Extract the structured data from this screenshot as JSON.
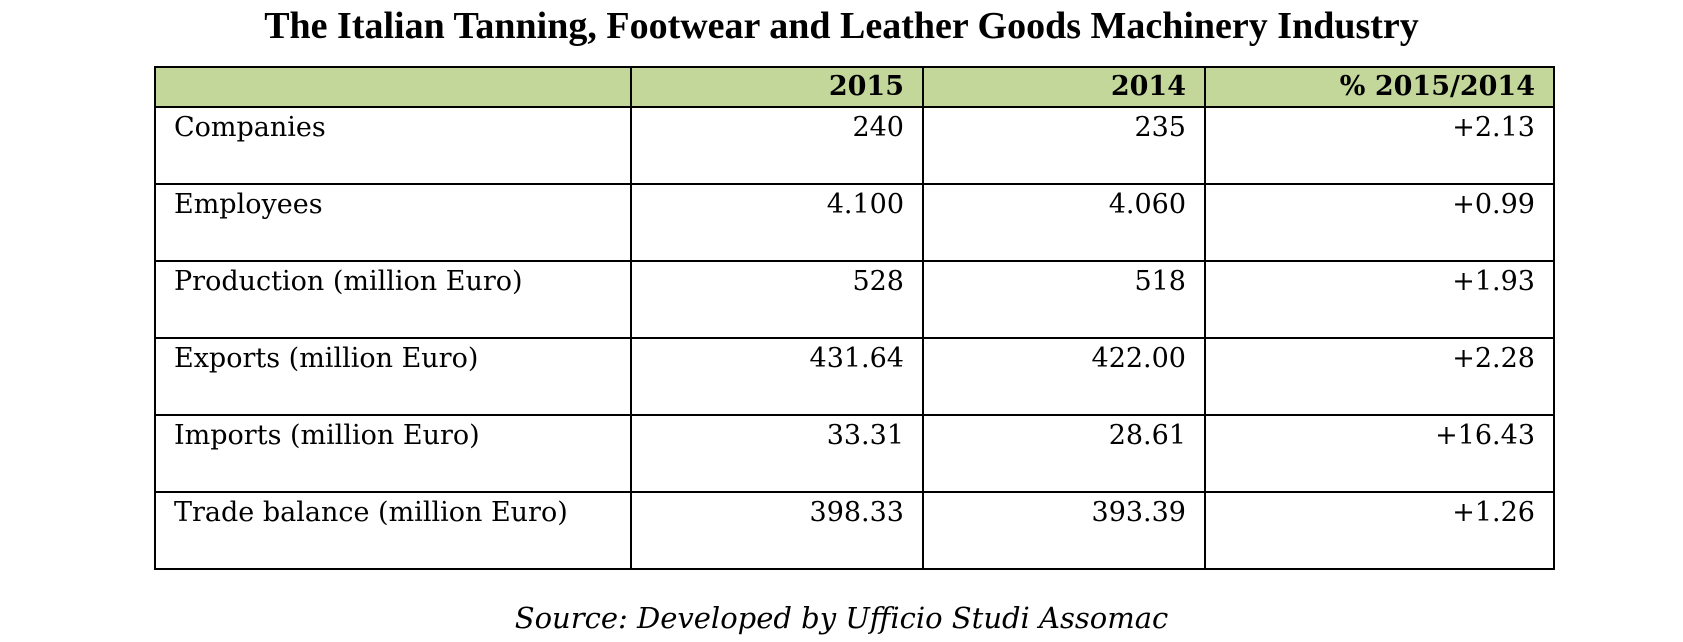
{
  "title": "The Italian Tanning, Footwear and Leather Goods Machinery Industry",
  "table": {
    "header_color": "#c4d79b",
    "columns": [
      "",
      "2015",
      "2014",
      "% 2015/2014"
    ],
    "rows": [
      {
        "label": "Companies",
        "y2015": "240",
        "y2014": "235",
        "change": "+2.13"
      },
      {
        "label": "Employees",
        "y2015": "4.100",
        "y2014": "4.060",
        "change": "+0.99"
      },
      {
        "label": "Production (million Euro)",
        "y2015": "528",
        "y2014": "518",
        "change": "+1.93"
      },
      {
        "label": "Exports (million Euro)",
        "y2015": "431.64",
        "y2014": "422.00",
        "change": "+2.28"
      },
      {
        "label": "Imports (million Euro)",
        "y2015": "33.31",
        "y2014": "28.61",
        "change": "+16.43"
      },
      {
        "label": "Trade balance (million Euro)",
        "y2015": "398.33",
        "y2014": "393.39",
        "change": "+1.26"
      }
    ]
  },
  "source": "Source: Developed by Ufficio Studi Assomac"
}
